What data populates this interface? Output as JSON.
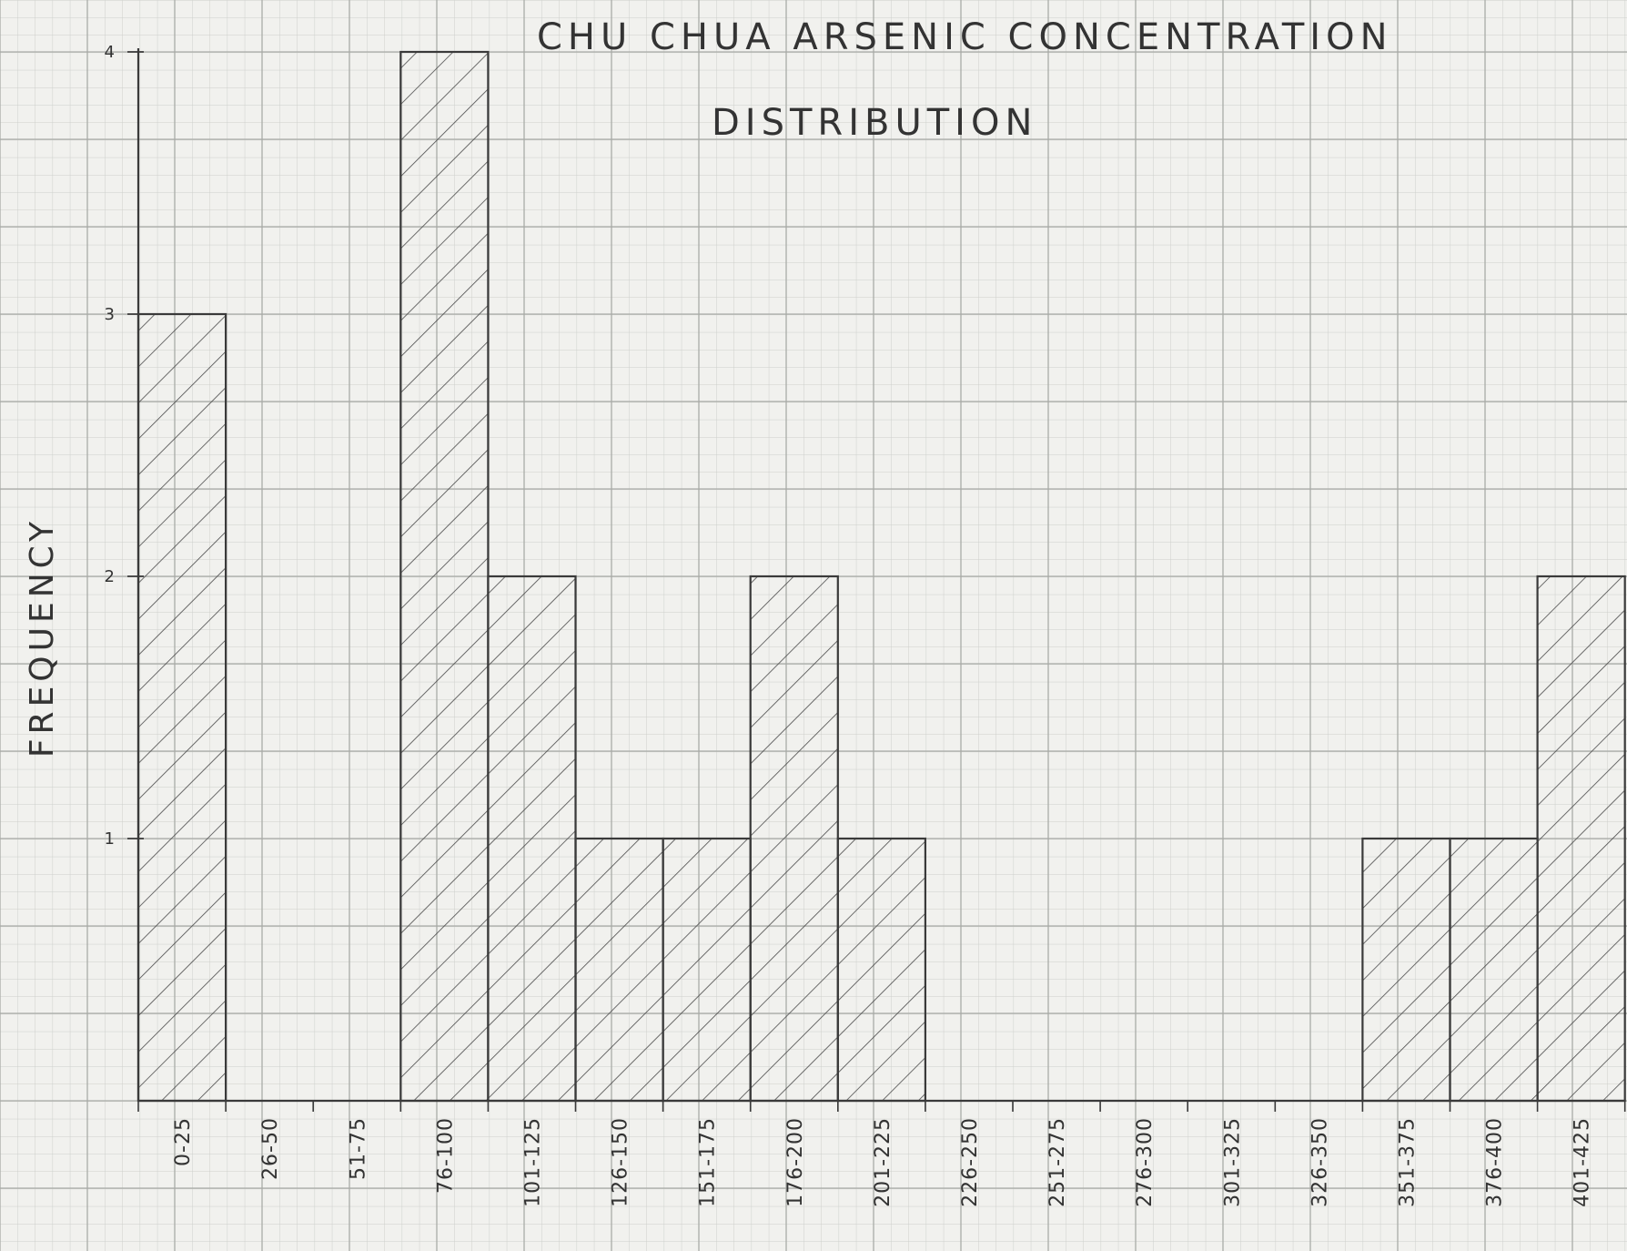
{
  "chart_data": {
    "type": "bar",
    "title": "CHU CHUA ARSENIC CONCENTRATION",
    "subtitle": "DISTRIBUTION",
    "xlabel": "",
    "ylabel": "FREQUENCY",
    "categories": [
      "0-25",
      "26-50",
      "51-75",
      "76-100",
      "101-125",
      "126-150",
      "151-175",
      "176-200",
      "201-225",
      "226-250",
      "251-275",
      "276-300",
      "301-325",
      "326-350",
      "351-375",
      "376-400",
      "401-425"
    ],
    "values": [
      3,
      0,
      0,
      4,
      2,
      1,
      1,
      2,
      1,
      0,
      0,
      0,
      0,
      0,
      1,
      1,
      2
    ],
    "ylim": [
      0,
      4
    ],
    "yticks": [
      1,
      2,
      3,
      4
    ],
    "grid": true,
    "bar_style": "diagonal-hatch",
    "colors": {
      "paper": "#f1f1ee",
      "grid_minor": "#c9cbc7",
      "grid_major": "#a9aba7",
      "ink": "#3a3a3a"
    }
  }
}
